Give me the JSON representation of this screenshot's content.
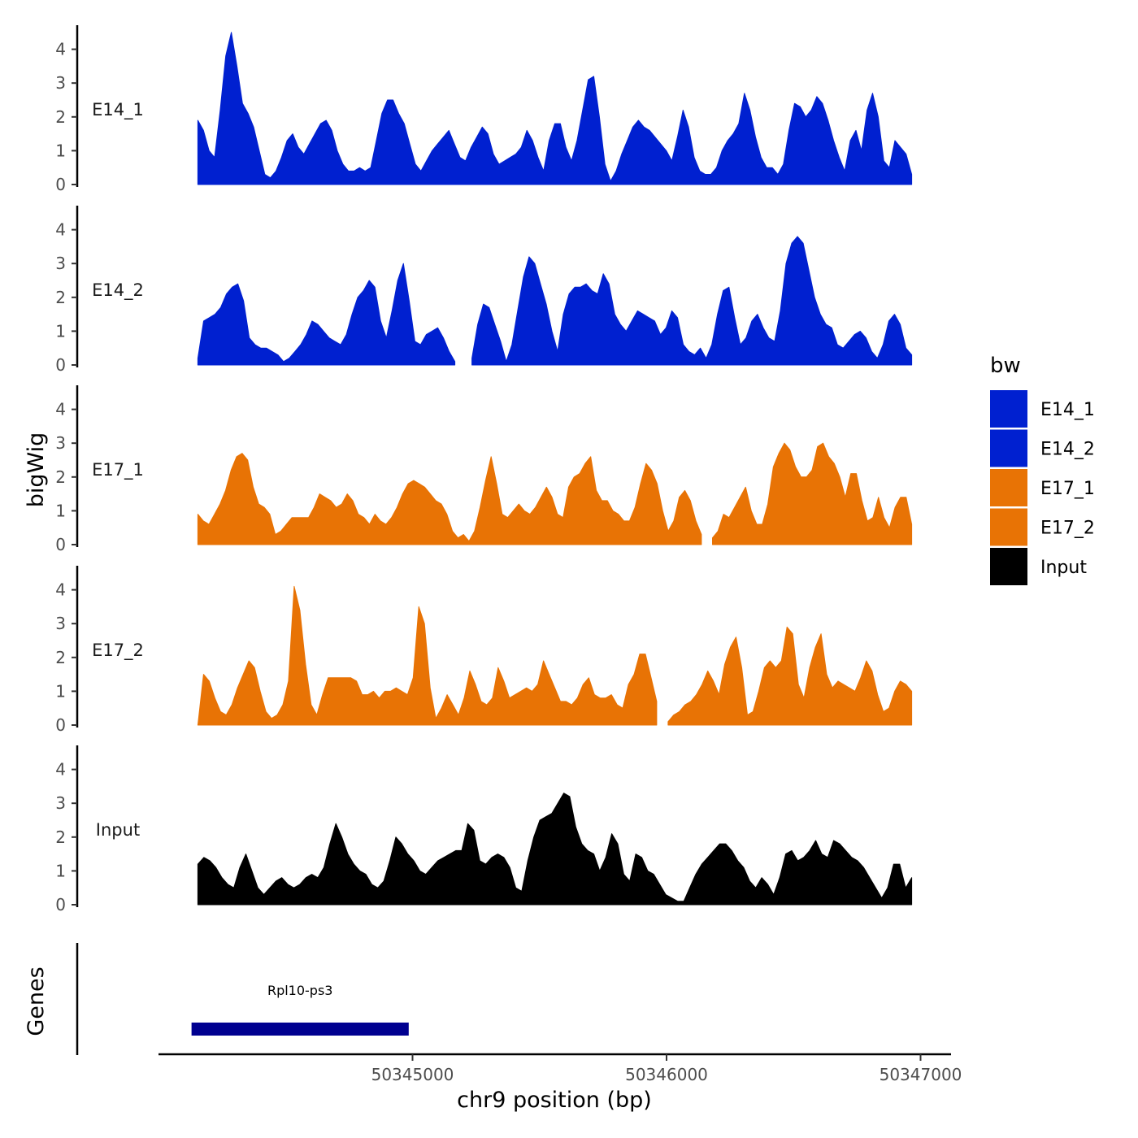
{
  "chart_data": {
    "type": "area",
    "ylabel": "bigWig",
    "xlabel": "chr9 position (bp)",
    "genes_label": "Genes",
    "ylim": [
      0,
      4.6
    ],
    "y_ticks": [
      "0",
      "1",
      "2",
      "3",
      "4"
    ],
    "x_ticks": [
      {
        "value": 50345000,
        "label": "50345000"
      },
      {
        "value": 50346000,
        "label": "50346000"
      },
      {
        "value": 50347000,
        "label": "50347000"
      }
    ],
    "xlim": [
      50344000,
      50347120
    ],
    "x_start": 50344155,
    "x_end": 50346965,
    "legend": {
      "title": "bw",
      "entries": [
        {
          "label": "E14_1",
          "color": "#0020D0"
        },
        {
          "label": "E14_2",
          "color": "#0020D0"
        },
        {
          "label": "E17_1",
          "color": "#E87305"
        },
        {
          "label": "E17_2",
          "color": "#E87305"
        },
        {
          "label": "Input",
          "color": "#000000"
        }
      ]
    },
    "series": [
      {
        "name": "E14_1",
        "color": "#0020D0",
        "values": [
          1.9,
          1.6,
          1.0,
          0.8,
          2.2,
          3.8,
          4.5,
          3.5,
          2.4,
          2.1,
          1.7,
          1.0,
          0.3,
          0.2,
          0.4,
          0.8,
          1.3,
          1.5,
          1.1,
          0.9,
          1.2,
          1.5,
          1.8,
          1.9,
          1.6,
          1.0,
          0.6,
          0.4,
          0.4,
          0.5,
          0.4,
          0.5,
          1.3,
          2.1,
          2.5,
          2.5,
          2.1,
          1.8,
          1.2,
          0.6,
          0.4,
          0.7,
          1.0,
          1.2,
          1.4,
          1.6,
          1.2,
          0.8,
          0.7,
          1.1,
          1.4,
          1.7,
          1.5,
          0.9,
          0.6,
          0.7,
          0.8,
          0.9,
          1.1,
          1.6,
          1.3,
          0.8,
          0.4,
          1.3,
          1.8,
          1.8,
          1.1,
          0.7,
          1.3,
          2.2,
          3.1,
          3.2,
          2.0,
          0.6,
          0.1,
          0.4,
          0.9,
          1.3,
          1.7,
          1.9,
          1.7,
          1.6,
          1.4,
          1.2,
          1.0,
          0.7,
          1.4,
          2.2,
          1.7,
          0.8,
          0.4,
          0.3,
          0.3,
          0.5,
          1.0,
          1.3,
          1.5,
          1.8,
          2.7,
          2.2,
          1.4,
          0.8,
          0.5,
          0.5,
          0.3,
          0.6,
          1.6,
          2.4,
          2.3,
          2.0,
          2.2,
          2.6,
          2.4,
          1.9,
          1.3,
          0.8,
          0.4,
          1.3,
          1.6,
          1.0,
          2.2,
          2.7,
          2.0,
          0.7,
          0.5,
          1.3,
          1.1,
          0.9,
          0.3
        ]
      },
      {
        "name": "E14_2",
        "color": "#0020D0",
        "values": [
          0.2,
          1.3,
          1.4,
          1.5,
          1.7,
          2.1,
          2.3,
          2.4,
          1.9,
          0.8,
          0.6,
          0.5,
          0.5,
          0.4,
          0.3,
          0.1,
          0.2,
          0.4,
          0.6,
          0.9,
          1.3,
          1.2,
          1.0,
          0.8,
          0.7,
          0.6,
          0.9,
          1.5,
          2.0,
          2.2,
          2.5,
          2.3,
          1.3,
          0.8,
          1.6,
          2.5,
          3.0,
          1.9,
          0.7,
          0.6,
          0.9,
          1.0,
          1.1,
          0.8,
          0.4,
          0.1,
          null,
          null,
          0.2,
          1.2,
          1.8,
          1.7,
          1.2,
          0.7,
          0.1,
          0.6,
          1.6,
          2.6,
          3.2,
          3.0,
          2.4,
          1.8,
          1.0,
          0.4,
          1.5,
          2.1,
          2.3,
          2.3,
          2.4,
          2.2,
          2.1,
          2.7,
          2.4,
          1.5,
          1.2,
          1.0,
          1.3,
          1.6,
          1.5,
          1.4,
          1.3,
          0.9,
          1.1,
          1.6,
          1.4,
          0.6,
          0.4,
          0.3,
          0.5,
          0.2,
          0.6,
          1.5,
          2.2,
          2.3,
          1.4,
          0.6,
          0.8,
          1.3,
          1.5,
          1.1,
          0.8,
          0.7,
          1.6,
          3.0,
          3.6,
          3.8,
          3.6,
          2.8,
          2.0,
          1.5,
          1.2,
          1.1,
          0.6,
          0.5,
          0.7,
          0.9,
          1.0,
          0.8,
          0.4,
          0.2,
          0.6,
          1.3,
          1.5,
          1.2,
          0.5,
          0.3
        ]
      },
      {
        "name": "E17_1",
        "color": "#E87305",
        "values": [
          0.9,
          0.7,
          0.6,
          0.9,
          1.2,
          1.6,
          2.2,
          2.6,
          2.7,
          2.5,
          1.7,
          1.2,
          1.1,
          0.9,
          0.3,
          0.4,
          0.6,
          0.8,
          0.8,
          0.8,
          0.8,
          1.1,
          1.5,
          1.4,
          1.3,
          1.1,
          1.2,
          1.5,
          1.3,
          0.9,
          0.8,
          0.6,
          0.9,
          0.7,
          0.6,
          0.8,
          1.1,
          1.5,
          1.8,
          1.9,
          1.8,
          1.7,
          1.5,
          1.3,
          1.2,
          0.9,
          0.4,
          0.2,
          0.3,
          0.1,
          0.4,
          1.1,
          1.9,
          2.6,
          1.8,
          0.9,
          0.8,
          1.0,
          1.2,
          1.0,
          0.9,
          1.1,
          1.4,
          1.7,
          1.4,
          0.9,
          0.8,
          1.7,
          2.0,
          2.1,
          2.4,
          2.6,
          1.6,
          1.3,
          1.3,
          1.0,
          0.9,
          0.7,
          0.7,
          1.1,
          1.8,
          2.4,
          2.2,
          1.8,
          1.0,
          0.4,
          0.7,
          1.4,
          1.6,
          1.3,
          0.7,
          0.3,
          null,
          0.2,
          0.4,
          0.9,
          0.8,
          1.1,
          1.4,
          1.7,
          1.0,
          0.6,
          0.6,
          1.2,
          2.3,
          2.7,
          3.0,
          2.8,
          2.3,
          2.0,
          2.0,
          2.2,
          2.9,
          3.0,
          2.6,
          2.4,
          2.0,
          1.4,
          2.1,
          2.1,
          1.3,
          0.7,
          0.8,
          1.4,
          0.8,
          0.5,
          1.1,
          1.4,
          1.4,
          0.6
        ]
      },
      {
        "name": "E17_2",
        "color": "#E87305",
        "values": [
          0.0,
          1.5,
          1.3,
          0.8,
          0.4,
          0.3,
          0.6,
          1.1,
          1.5,
          1.9,
          1.7,
          1.0,
          0.4,
          0.2,
          0.3,
          0.6,
          1.3,
          4.1,
          3.4,
          1.8,
          0.6,
          0.3,
          0.9,
          1.4,
          1.4,
          1.4,
          1.4,
          1.4,
          1.3,
          0.9,
          0.9,
          1.0,
          0.8,
          1.0,
          1.0,
          1.1,
          1.0,
          0.9,
          1.4,
          3.5,
          3.0,
          1.1,
          0.2,
          0.5,
          0.9,
          0.6,
          0.3,
          0.8,
          1.6,
          1.2,
          0.7,
          0.6,
          0.8,
          1.7,
          1.3,
          0.8,
          0.9,
          1.0,
          1.1,
          1.0,
          1.2,
          1.9,
          1.5,
          1.1,
          0.7,
          0.7,
          0.6,
          0.8,
          1.2,
          1.4,
          0.9,
          0.8,
          0.8,
          0.9,
          0.6,
          0.5,
          1.2,
          1.5,
          2.1,
          2.1,
          1.4,
          0.7,
          null,
          0.1,
          0.3,
          0.4,
          0.6,
          0.7,
          0.9,
          1.2,
          1.6,
          1.3,
          0.9,
          1.8,
          2.3,
          2.6,
          1.7,
          0.3,
          0.4,
          1.0,
          1.7,
          1.9,
          1.7,
          1.9,
          2.9,
          2.7,
          1.2,
          0.8,
          1.7,
          2.3,
          2.7,
          1.5,
          1.1,
          1.3,
          1.2,
          1.1,
          1.0,
          1.4,
          1.9,
          1.6,
          0.9,
          0.4,
          0.5,
          1.0,
          1.3,
          1.2,
          1.0
        ]
      },
      {
        "name": "Input",
        "color": "#000000",
        "values": [
          1.2,
          1.4,
          1.3,
          1.1,
          0.8,
          0.6,
          0.5,
          1.1,
          1.5,
          1.0,
          0.5,
          0.3,
          0.5,
          0.7,
          0.8,
          0.6,
          0.5,
          0.6,
          0.8,
          0.9,
          0.8,
          1.1,
          1.8,
          2.4,
          2.0,
          1.5,
          1.2,
          1.0,
          0.9,
          0.6,
          0.5,
          0.7,
          1.3,
          2.0,
          1.8,
          1.5,
          1.3,
          1.0,
          0.9,
          1.1,
          1.3,
          1.4,
          1.5,
          1.6,
          1.6,
          2.4,
          2.2,
          1.3,
          1.2,
          1.4,
          1.5,
          1.4,
          1.1,
          0.5,
          0.4,
          1.3,
          2.0,
          2.5,
          2.6,
          2.7,
          3.0,
          3.3,
          3.2,
          2.3,
          1.8,
          1.6,
          1.5,
          1.0,
          1.4,
          2.1,
          1.8,
          0.9,
          0.7,
          1.5,
          1.4,
          1.0,
          0.9,
          0.6,
          0.3,
          0.2,
          0.1,
          0.1,
          0.5,
          0.9,
          1.2,
          1.4,
          1.6,
          1.8,
          1.8,
          1.6,
          1.3,
          1.1,
          0.7,
          0.5,
          0.8,
          0.6,
          0.3,
          0.8,
          1.5,
          1.6,
          1.3,
          1.4,
          1.6,
          1.9,
          1.5,
          1.4,
          1.9,
          1.8,
          1.6,
          1.4,
          1.3,
          1.1,
          0.8,
          0.5,
          0.2,
          0.5,
          1.2,
          1.2,
          0.5,
          0.8
        ]
      }
    ],
    "genes": [
      {
        "name": "Rpl10-ps3",
        "start": 50344130,
        "end": 50344985,
        "color": "#000090"
      }
    ]
  }
}
